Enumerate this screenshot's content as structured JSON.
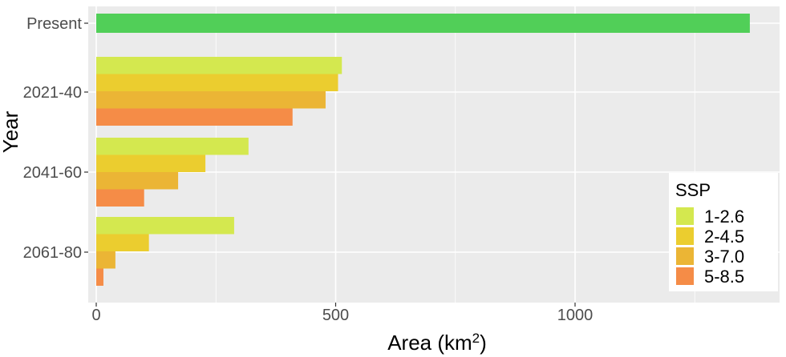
{
  "chart_data": {
    "type": "bar",
    "orientation": "horizontal",
    "xlabel": "Area (km",
    "xlabel_superscript": "2",
    "xlabel_suffix": ")",
    "ylabel": "Year",
    "xlim": [
      0,
      1400
    ],
    "xticks": [
      0,
      500,
      1000
    ],
    "grid": true,
    "legend_placement": "bottom-right",
    "background_color": "#ebebeb",
    "grid_color": "#ffffff",
    "categories": [
      "Present",
      "2021-40",
      "2041-60",
      "2061-80"
    ],
    "present_bar": {
      "category": "Present",
      "value": 1365,
      "color": "#51cf58"
    },
    "legend_title": "SSP",
    "series": [
      {
        "name": "1-2.6",
        "color": "#d4e84f",
        "values": [
          null,
          513,
          318,
          288
        ]
      },
      {
        "name": "2-4.5",
        "color": "#ebcd2f",
        "values": [
          null,
          505,
          228,
          110
        ]
      },
      {
        "name": "3-7.0",
        "color": "#ebb535",
        "values": [
          null,
          479,
          171,
          40
        ]
      },
      {
        "name": "5-8.5",
        "color": "#f58c47",
        "values": [
          null,
          410,
          100,
          15
        ]
      }
    ]
  }
}
